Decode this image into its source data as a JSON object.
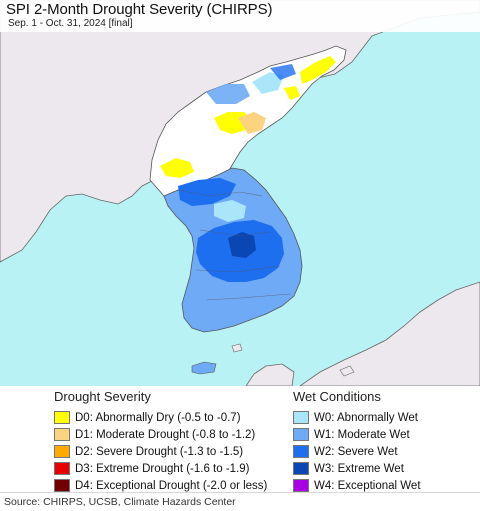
{
  "title": "SPI 2-Month Drought Severity (CHIRPS)",
  "subtitle": "Sep. 1 - Oct. 31, 2024 [final]",
  "colors": {
    "sea": "#b8f2f5",
    "land_other": "#ece8ee",
    "land_no_data": "#ffffff",
    "borders": "#555555"
  },
  "legend": {
    "drought": {
      "heading": "Drought Severity",
      "items": [
        {
          "label": "D0: Abnormally Dry (-0.5 to -0.7)",
          "color": "#ffff00"
        },
        {
          "label": "D1: Moderate Drought (-0.8 to -1.2)",
          "color": "#fcd37f"
        },
        {
          "label": "D2: Severe Drought (-1.3 to -1.5)",
          "color": "#ffaa00"
        },
        {
          "label": "D3: Extreme Drought (-1.6 to -1.9)",
          "color": "#e60000"
        },
        {
          "label": "D4: Exceptional Drought (-2.0 or less)",
          "color": "#730000"
        }
      ]
    },
    "wet": {
      "heading": "Wet Conditions",
      "items": [
        {
          "label": "W0: Abnormally Wet",
          "color": "#aae6fa"
        },
        {
          "label": "W1: Moderate Wet",
          "color": "#6eaaf5"
        },
        {
          "label": "W2: Severe Wet",
          "color": "#1e6ef0"
        },
        {
          "label": "W3: Extreme Wet",
          "color": "#0a46b4"
        },
        {
          "label": "W4: Exceptional Wet",
          "color": "#aa00e6"
        }
      ]
    }
  },
  "source": "Source: CHIRPS, UCSB, Climate Hazards Center"
}
